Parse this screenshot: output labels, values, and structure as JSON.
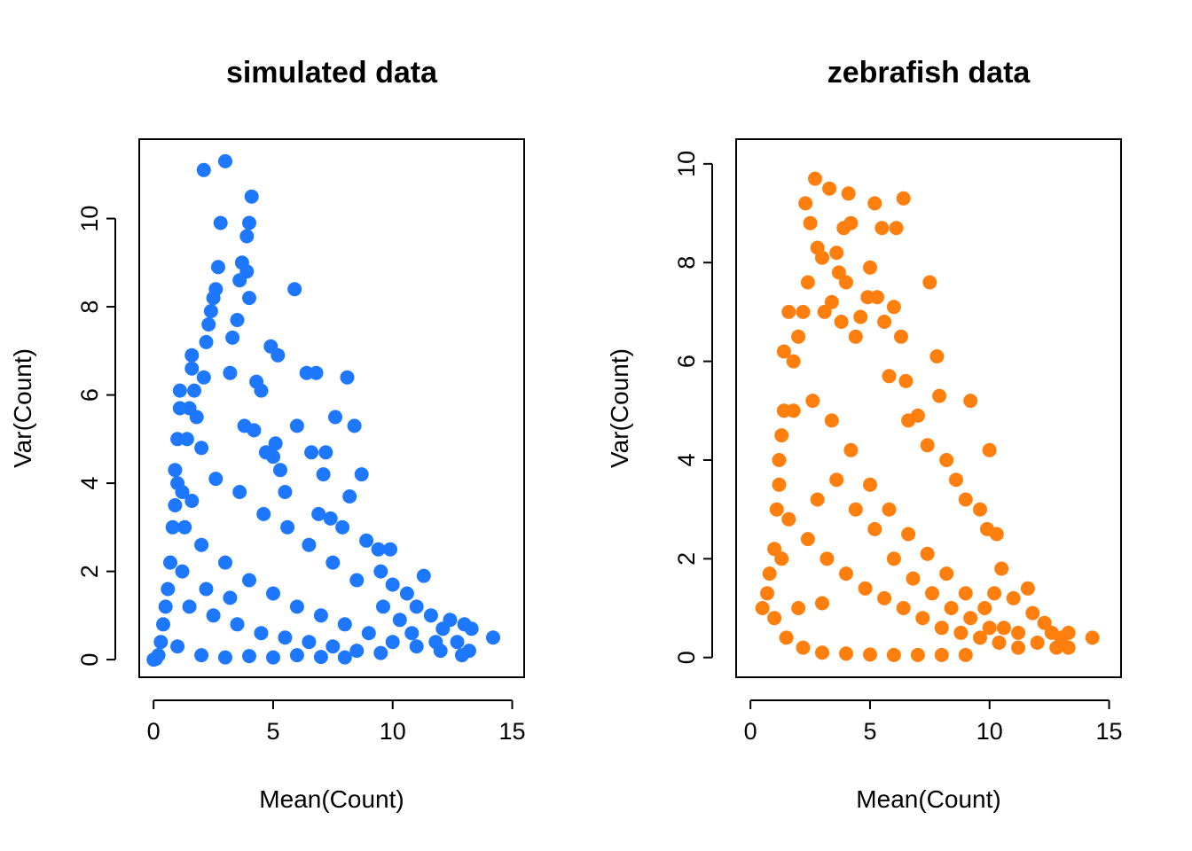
{
  "chart_data": [
    {
      "type": "scatter",
      "title": "simulated data",
      "xlabel": "Mean(Count)",
      "ylabel": "Var(Count)",
      "xlim": [
        -0.6,
        15.5
      ],
      "ylim": [
        -0.4,
        11.8
      ],
      "xticks": [
        0,
        5,
        10,
        15
      ],
      "yticks": [
        0,
        2,
        4,
        6,
        8,
        10
      ],
      "color": "#1E78FF",
      "grid": false,
      "legend": "none",
      "series": [
        {
          "points": [
            [
              0.0,
              0.0
            ],
            [
              0.1,
              0.02
            ],
            [
              0.2,
              0.1
            ],
            [
              0.3,
              0.4
            ],
            [
              0.4,
              0.8
            ],
            [
              0.5,
              1.2
            ],
            [
              0.6,
              1.6
            ],
            [
              0.7,
              2.2
            ],
            [
              0.8,
              3.0
            ],
            [
              0.9,
              3.5
            ],
            [
              1.0,
              4.0
            ],
            [
              1.0,
              5.0
            ],
            [
              1.1,
              6.1
            ],
            [
              1.1,
              5.7
            ],
            [
              0.9,
              4.3
            ],
            [
              1.2,
              3.8
            ],
            [
              1.4,
              5.0
            ],
            [
              1.5,
              5.7
            ],
            [
              1.6,
              6.6
            ],
            [
              1.6,
              6.9
            ],
            [
              1.7,
              6.1
            ],
            [
              1.8,
              5.5
            ],
            [
              2.0,
              4.8
            ],
            [
              2.1,
              6.4
            ],
            [
              2.2,
              7.2
            ],
            [
              2.3,
              7.6
            ],
            [
              2.4,
              7.9
            ],
            [
              2.5,
              8.2
            ],
            [
              2.6,
              8.4
            ],
            [
              2.7,
              8.9
            ],
            [
              2.8,
              9.9
            ],
            [
              2.1,
              11.1
            ],
            [
              3.0,
              11.3
            ],
            [
              3.3,
              7.3
            ],
            [
              3.5,
              7.7
            ],
            [
              3.6,
              8.6
            ],
            [
              3.7,
              9.0
            ],
            [
              3.9,
              8.8
            ],
            [
              3.9,
              9.6
            ],
            [
              4.0,
              9.9
            ],
            [
              4.1,
              10.5
            ],
            [
              4.0,
              8.2
            ],
            [
              3.2,
              6.5
            ],
            [
              3.8,
              5.3
            ],
            [
              4.2,
              5.2
            ],
            [
              4.3,
              6.3
            ],
            [
              4.5,
              6.1
            ],
            [
              4.7,
              4.7
            ],
            [
              4.9,
              7.1
            ],
            [
              5.2,
              6.9
            ],
            [
              5.0,
              4.6
            ],
            [
              5.1,
              4.9
            ],
            [
              5.3,
              4.3
            ],
            [
              5.5,
              3.8
            ],
            [
              5.9,
              8.4
            ],
            [
              6.0,
              5.3
            ],
            [
              6.4,
              6.5
            ],
            [
              6.8,
              6.5
            ],
            [
              6.6,
              4.7
            ],
            [
              7.1,
              4.2
            ],
            [
              7.2,
              4.7
            ],
            [
              7.6,
              5.5
            ],
            [
              8.1,
              6.4
            ],
            [
              8.4,
              5.3
            ],
            [
              8.7,
              4.2
            ],
            [
              8.2,
              3.7
            ],
            [
              7.4,
              3.2
            ],
            [
              6.9,
              3.3
            ],
            [
              7.9,
              3.0
            ],
            [
              8.9,
              2.7
            ],
            [
              9.4,
              2.5
            ],
            [
              9.9,
              2.5
            ],
            [
              9.5,
              2.0
            ],
            [
              10.0,
              1.7
            ],
            [
              10.6,
              1.5
            ],
            [
              11.3,
              1.9
            ],
            [
              11.0,
              1.2
            ],
            [
              11.6,
              1.0
            ],
            [
              12.1,
              0.7
            ],
            [
              12.4,
              0.9
            ],
            [
              12.7,
              0.4
            ],
            [
              13.0,
              0.8
            ],
            [
              13.3,
              0.7
            ],
            [
              13.2,
              0.2
            ],
            [
              12.9,
              0.1
            ],
            [
              14.2,
              0.5
            ],
            [
              11.8,
              0.4
            ],
            [
              10.8,
              0.6
            ],
            [
              10.3,
              0.9
            ],
            [
              9.6,
              1.2
            ],
            [
              8.5,
              1.8
            ],
            [
              7.5,
              2.2
            ],
            [
              6.5,
              2.6
            ],
            [
              5.6,
              3.0
            ],
            [
              4.6,
              3.3
            ],
            [
              3.6,
              3.8
            ],
            [
              2.6,
              4.1
            ],
            [
              1.6,
              3.6
            ],
            [
              1.3,
              3.0
            ],
            [
              2.0,
              2.6
            ],
            [
              3.0,
              2.2
            ],
            [
              4.0,
              1.8
            ],
            [
              5.0,
              1.5
            ],
            [
              6.0,
              1.2
            ],
            [
              7.0,
              1.0
            ],
            [
              8.0,
              0.8
            ],
            [
              9.0,
              0.6
            ],
            [
              10.0,
              0.4
            ],
            [
              11.0,
              0.3
            ],
            [
              12.0,
              0.2
            ],
            [
              1.5,
              1.2
            ],
            [
              2.5,
              1.0
            ],
            [
              3.5,
              0.8
            ],
            [
              4.5,
              0.6
            ],
            [
              5.5,
              0.5
            ],
            [
              6.5,
              0.4
            ],
            [
              7.5,
              0.3
            ],
            [
              8.5,
              0.2
            ],
            [
              9.5,
              0.15
            ],
            [
              2.0,
              0.1
            ],
            [
              3.0,
              0.05
            ],
            [
              4.0,
              0.08
            ],
            [
              5.0,
              0.05
            ],
            [
              6.0,
              0.1
            ],
            [
              7.0,
              0.06
            ],
            [
              8.0,
              0.05
            ],
            [
              1.0,
              0.3
            ],
            [
              1.2,
              2.0
            ],
            [
              2.2,
              1.6
            ],
            [
              3.2,
              1.4
            ]
          ]
        }
      ]
    },
    {
      "type": "scatter",
      "title": "zebrafish data",
      "xlabel": "Mean(Count)",
      "ylabel": "Var(Count)",
      "xlim": [
        -0.6,
        15.5
      ],
      "ylim": [
        -0.4,
        10.5
      ],
      "xticks": [
        0,
        5,
        10,
        15
      ],
      "yticks": [
        0,
        2,
        4,
        6,
        8,
        10
      ],
      "color": "#FF7F0E",
      "grid": false,
      "legend": "none",
      "series": [
        {
          "points": [
            [
              0.5,
              1.0
            ],
            [
              0.7,
              1.3
            ],
            [
              0.8,
              1.7
            ],
            [
              1.0,
              2.2
            ],
            [
              1.1,
              3.0
            ],
            [
              1.2,
              4.0
            ],
            [
              1.3,
              4.5
            ],
            [
              1.4,
              5.0
            ],
            [
              1.4,
              6.2
            ],
            [
              1.6,
              7.0
            ],
            [
              1.8,
              6.0
            ],
            [
              2.0,
              6.5
            ],
            [
              2.2,
              7.0
            ],
            [
              2.3,
              9.2
            ],
            [
              2.4,
              7.6
            ],
            [
              2.5,
              8.8
            ],
            [
              2.7,
              9.7
            ],
            [
              2.8,
              8.3
            ],
            [
              3.0,
              8.1
            ],
            [
              3.1,
              7.0
            ],
            [
              3.3,
              9.5
            ],
            [
              3.4,
              7.2
            ],
            [
              3.6,
              8.2
            ],
            [
              3.7,
              7.8
            ],
            [
              3.8,
              6.8
            ],
            [
              3.9,
              8.7
            ],
            [
              4.0,
              7.6
            ],
            [
              4.1,
              9.4
            ],
            [
              4.2,
              8.8
            ],
            [
              4.4,
              6.5
            ],
            [
              4.6,
              6.9
            ],
            [
              4.9,
              7.3
            ],
            [
              5.0,
              7.9
            ],
            [
              5.2,
              9.2
            ],
            [
              5.3,
              7.3
            ],
            [
              5.5,
              8.7
            ],
            [
              5.6,
              6.8
            ],
            [
              5.8,
              5.7
            ],
            [
              6.0,
              7.1
            ],
            [
              6.1,
              8.7
            ],
            [
              6.4,
              9.3
            ],
            [
              6.3,
              6.5
            ],
            [
              6.5,
              5.6
            ],
            [
              6.6,
              4.8
            ],
            [
              7.0,
              4.9
            ],
            [
              7.4,
              4.3
            ],
            [
              7.5,
              7.6
            ],
            [
              7.8,
              6.1
            ],
            [
              7.9,
              5.3
            ],
            [
              8.2,
              4.0
            ],
            [
              8.6,
              3.6
            ],
            [
              9.0,
              3.2
            ],
            [
              9.2,
              5.2
            ],
            [
              9.6,
              3.0
            ],
            [
              10.0,
              4.2
            ],
            [
              9.9,
              2.6
            ],
            [
              10.3,
              2.5
            ],
            [
              10.5,
              1.8
            ],
            [
              10.2,
              1.3
            ],
            [
              11.0,
              1.2
            ],
            [
              11.6,
              1.4
            ],
            [
              11.8,
              0.9
            ],
            [
              12.3,
              0.7
            ],
            [
              12.6,
              0.5
            ],
            [
              13.0,
              0.4
            ],
            [
              13.3,
              0.5
            ],
            [
              13.3,
              0.2
            ],
            [
              12.8,
              0.2
            ],
            [
              14.3,
              0.4
            ],
            [
              12.0,
              0.3
            ],
            [
              11.2,
              0.5
            ],
            [
              10.6,
              0.6
            ],
            [
              9.8,
              1.0
            ],
            [
              9.0,
              1.3
            ],
            [
              8.2,
              1.7
            ],
            [
              7.4,
              2.1
            ],
            [
              6.6,
              2.5
            ],
            [
              5.8,
              3.0
            ],
            [
              5.0,
              3.5
            ],
            [
              4.2,
              4.2
            ],
            [
              3.4,
              4.8
            ],
            [
              2.6,
              5.2
            ],
            [
              1.8,
              5.0
            ],
            [
              1.2,
              3.5
            ],
            [
              1.6,
              2.8
            ],
            [
              2.4,
              2.4
            ],
            [
              3.2,
              2.0
            ],
            [
              4.0,
              1.7
            ],
            [
              4.8,
              1.4
            ],
            [
              5.6,
              1.2
            ],
            [
              6.4,
              1.0
            ],
            [
              7.2,
              0.8
            ],
            [
              8.0,
              0.6
            ],
            [
              8.8,
              0.5
            ],
            [
              9.6,
              0.4
            ],
            [
              10.4,
              0.3
            ],
            [
              11.2,
              0.2
            ],
            [
              1.0,
              0.8
            ],
            [
              1.5,
              0.4
            ],
            [
              2.2,
              0.2
            ],
            [
              3.0,
              0.1
            ],
            [
              4.0,
              0.08
            ],
            [
              5.0,
              0.06
            ],
            [
              6.0,
              0.05
            ],
            [
              7.0,
              0.05
            ],
            [
              8.0,
              0.05
            ],
            [
              9.0,
              0.05
            ],
            [
              2.0,
              1.0
            ],
            [
              3.0,
              1.1
            ],
            [
              2.8,
              3.2
            ],
            [
              3.6,
              3.6
            ],
            [
              4.4,
              3.0
            ],
            [
              5.2,
              2.6
            ],
            [
              6.0,
              2.0
            ],
            [
              6.8,
              1.6
            ],
            [
              7.6,
              1.3
            ],
            [
              8.4,
              1.0
            ],
            [
              9.2,
              0.8
            ],
            [
              10.0,
              0.6
            ],
            [
              1.3,
              2.0
            ]
          ]
        }
      ]
    }
  ]
}
